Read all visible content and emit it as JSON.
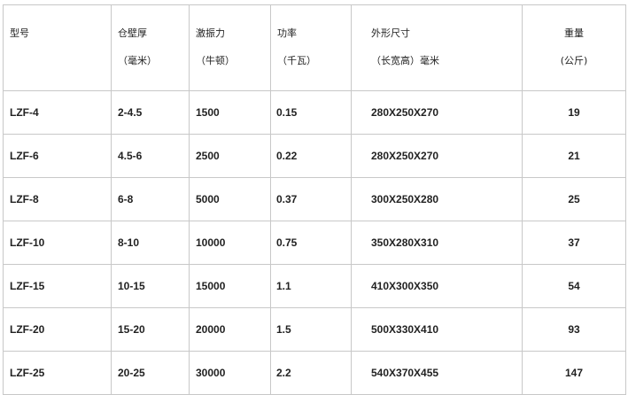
{
  "headers": [
    {
      "line1": "型号",
      "line2": ""
    },
    {
      "line1": "仓壁厚",
      "line2": "（毫米）"
    },
    {
      "line1": "激振力",
      "line2": "（牛顿）"
    },
    {
      "line1": "功率",
      "line2": "（千瓦）"
    },
    {
      "line1": "外形尺寸",
      "line2": "（长宽高）毫米"
    },
    {
      "line1": "重量",
      "line2": "(公斤)"
    }
  ],
  "rows": [
    [
      "LZF-4",
      "2-4.5",
      "1500",
      "0.15",
      "280X250X270",
      "19"
    ],
    [
      "LZF-6",
      "4.5-6",
      "2500",
      "0.22",
      "280X250X270",
      "21"
    ],
    [
      "LZF-8",
      "6-8",
      "5000",
      "0.37",
      "300X250X280",
      "25"
    ],
    [
      "LZF-10",
      "8-10",
      "10000",
      "0.75",
      "350X280X310",
      "37"
    ],
    [
      "LZF-15",
      "10-15",
      "15000",
      "1.1",
      "410X300X350",
      "54"
    ],
    [
      "LZF-20",
      "15-20",
      "20000",
      "1.5",
      "500X330X410",
      "93"
    ],
    [
      "LZF-25",
      "20-25",
      "30000",
      "2.2",
      "540X370X455",
      "147"
    ]
  ]
}
